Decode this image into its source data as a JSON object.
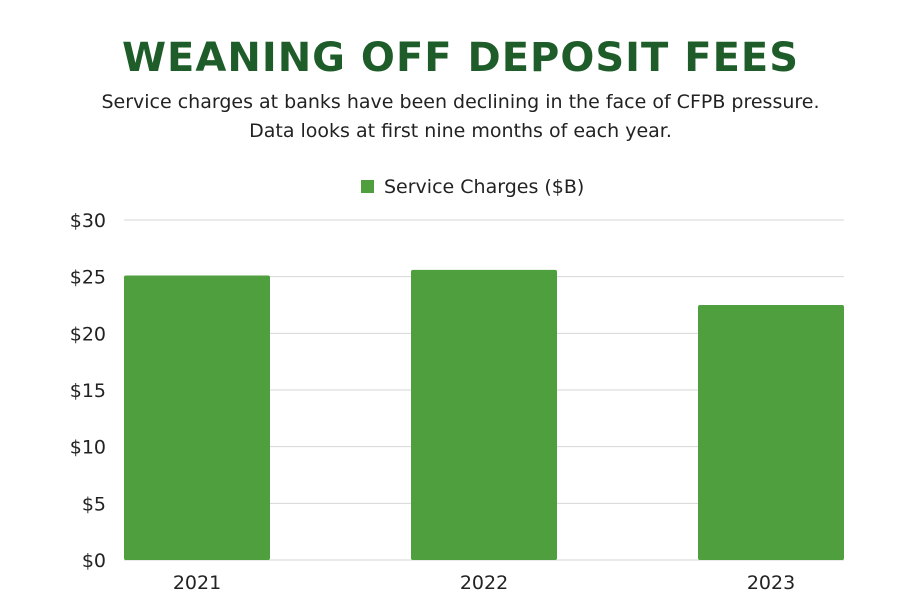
{
  "header": {
    "title": "WEANING OFF DEPOSIT FEES",
    "subtitle_lines": [
      "Service charges at banks have been declining in the face of CFPB pressure.",
      "Data looks at first nine months of each year."
    ]
  },
  "colors": {
    "title": "#1e5c2a",
    "bar": "#4f9f3f",
    "grid": "#d6d6d6",
    "text": "#222222"
  },
  "chart_data": {
    "type": "bar",
    "categories": [
      "2021",
      "2022",
      "2023"
    ],
    "series": [
      {
        "name": "Service Charges ($B)",
        "values": [
          25.1,
          25.6,
          22.5
        ]
      }
    ],
    "ylim": [
      0,
      30
    ],
    "yticks": [
      0,
      5,
      10,
      15,
      20,
      25,
      30
    ],
    "ytick_labels": [
      "$0",
      "$5",
      "$10",
      "$15",
      "$20",
      "$25",
      "$30"
    ],
    "legend_position": "top-center",
    "grid": true
  }
}
